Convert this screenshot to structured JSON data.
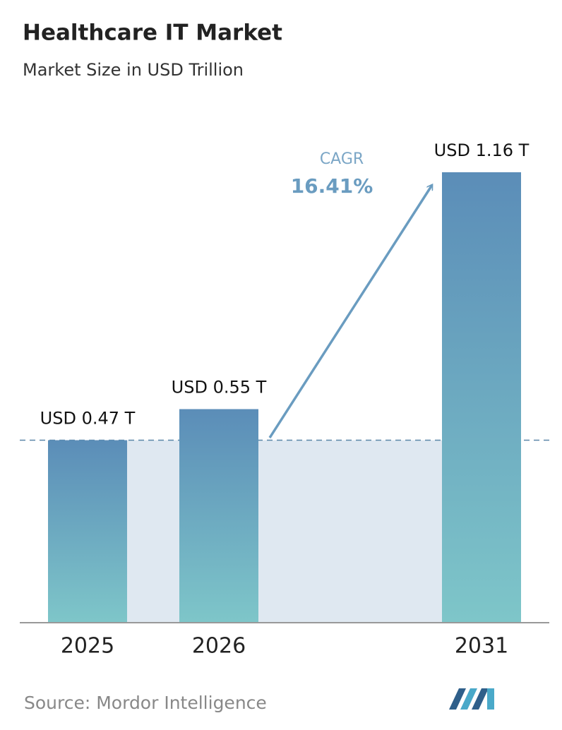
{
  "chart_data": {
    "type": "bar",
    "title": "Healthcare IT Market",
    "subtitle": "Market Size in USD Trillion",
    "categories": [
      "2025",
      "2026",
      "2031"
    ],
    "values": [
      0.47,
      0.55,
      1.16
    ],
    "value_labels": [
      "USD 0.47 T",
      "USD 0.55 T",
      "USD 1.16 T"
    ],
    "color_top": "#5b8db8",
    "color_bottom": "#7ec6c9",
    "annotation": {
      "label": "CAGR",
      "value": "16.41%"
    },
    "source": "Source: Mordor Intelligence"
  }
}
